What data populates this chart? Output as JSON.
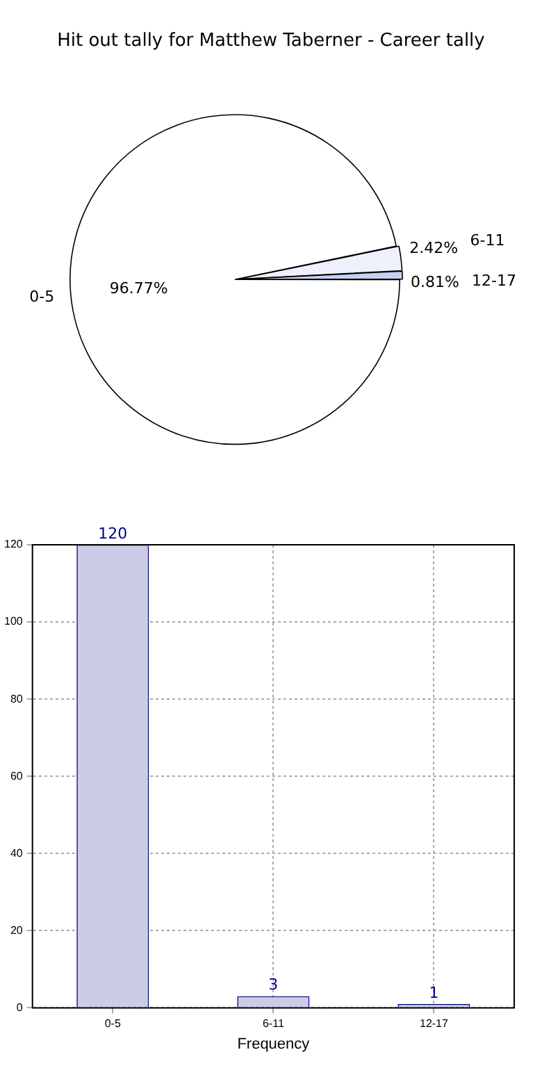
{
  "chart_data": [
    {
      "type": "pie",
      "title": "Hit out tally for Matthew Taberner - Career tally",
      "categories": [
        "0-5",
        "6-11",
        "12-17"
      ],
      "values": [
        96.77,
        2.42,
        0.81
      ],
      "colors": [
        "#ffffff",
        "#eef0fb",
        "#c8d0f0"
      ],
      "value_labels": [
        "96.77%",
        "2.42%",
        "0.81%"
      ]
    },
    {
      "type": "bar",
      "xlabel": "Frequency",
      "categories": [
        "0-5",
        "6-11",
        "12-17"
      ],
      "values": [
        120,
        3,
        1
      ],
      "color": "#ccccE6",
      "ylim": [
        0,
        120
      ],
      "yticks": [
        0,
        20,
        40,
        60,
        80,
        100,
        120
      ],
      "grid": true,
      "data_labels": true
    }
  ]
}
